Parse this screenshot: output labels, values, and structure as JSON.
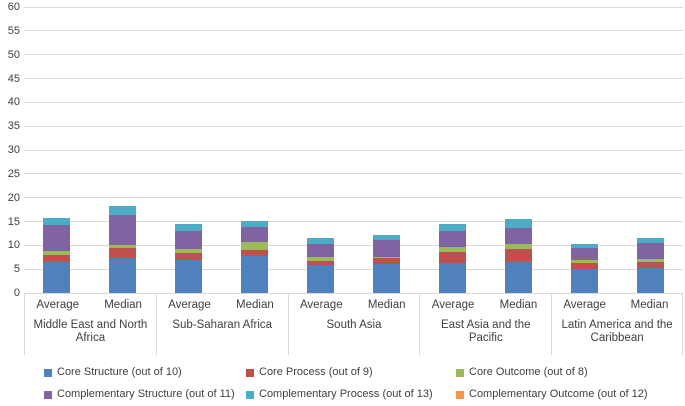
{
  "chart_data": {
    "type": "bar",
    "stacked": true,
    "title": "",
    "xlabel": "",
    "ylabel": "",
    "ylim": [
      0,
      60
    ],
    "y_ticks": [
      0,
      5,
      10,
      15,
      20,
      25,
      30,
      35,
      40,
      45,
      50,
      55,
      60
    ],
    "grid": true,
    "legend_position": "bottom",
    "regions": [
      "Middle East and North Africa",
      "Sub-Saharan Africa",
      "South Asia",
      "East Asia and the Pacific",
      "Latin America and the Caribbean"
    ],
    "bar_labels": [
      "Average",
      "Median"
    ],
    "bar_order_note": "values arrays are ordered region-major: MENA Avg, MENA Med, SSA Avg, SSA Med, South Asia Avg, South Asia Med, EAP Avg, EAP Med, LAC Avg, LAC Med",
    "series": [
      {
        "name": "Core Structure (out of 10)",
        "color": "#4f81bd",
        "values": [
          6.5,
          7.4,
          6.9,
          7.7,
          5.8,
          6.0,
          6.2,
          6.6,
          5.0,
          5.2
        ]
      },
      {
        "name": "Core Process (out of 9)",
        "color": "#c0504d",
        "values": [
          1.5,
          2.0,
          1.6,
          1.4,
          1.0,
          1.4,
          2.5,
          2.7,
          1.3,
          1.3
        ]
      },
      {
        "name": "Core Outcome (out of 8)",
        "color": "#9bbb59",
        "values": [
          0.75,
          0.7,
          0.8,
          1.6,
          0.7,
          0.1,
          1.0,
          1.0,
          0.7,
          0.7
        ]
      },
      {
        "name": "Complementary Structure (out of 11)",
        "color": "#8064a2",
        "values": [
          5.5,
          6.2,
          3.8,
          3.1,
          2.7,
          3.7,
          3.4,
          3.4,
          2.4,
          3.3
        ]
      },
      {
        "name": "Complementary Process (out of 13)",
        "color": "#4bacc6",
        "values": [
          1.5,
          2.0,
          1.3,
          1.4,
          1.3,
          0.9,
          1.4,
          1.8,
          0.9,
          1.1
        ]
      },
      {
        "name": "Complementary Outcome (out of 12)",
        "color": "#f79646",
        "values": [
          0,
          0,
          0,
          0,
          0,
          0,
          0,
          0,
          0,
          0
        ]
      }
    ],
    "bar_totals": [
      15.75,
      18.3,
      14.4,
      15.2,
      11.5,
      12.1,
      14.5,
      15.5,
      10.3,
      11.6
    ]
  },
  "colors": {
    "gridline": "#d9d9d9",
    "text": "#404040"
  }
}
